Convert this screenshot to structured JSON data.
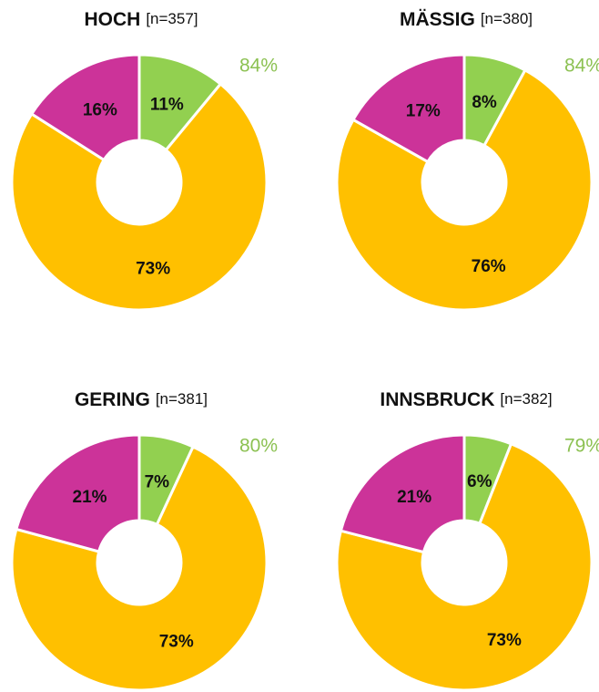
{
  "chart_data": [
    {
      "type": "pie",
      "title": "HOCH",
      "subtitle": "[n=357]",
      "annotation": "84%",
      "categories": [
        null,
        null,
        null
      ],
      "values": [
        11,
        73,
        16
      ],
      "value_labels": [
        "11%",
        "73%",
        "16%"
      ],
      "colors": [
        "#92d050",
        "#ffc000",
        "#cc3399"
      ]
    },
    {
      "type": "pie",
      "title": "MÄSSIG",
      "subtitle": "[n=380]",
      "annotation": "84%",
      "categories": [
        null,
        null,
        null
      ],
      "values": [
        8,
        76,
        17
      ],
      "value_labels": [
        "8%",
        "76%",
        "17%"
      ],
      "colors": [
        "#92d050",
        "#ffc000",
        "#cc3399"
      ]
    },
    {
      "type": "pie",
      "title": "GERING",
      "subtitle": "[n=381]",
      "annotation": "80%",
      "categories": [
        null,
        null,
        null
      ],
      "values": [
        7,
        73,
        21
      ],
      "value_labels": [
        "7%",
        "73%",
        "21%"
      ],
      "colors": [
        "#92d050",
        "#ffc000",
        "#cc3399"
      ]
    },
    {
      "type": "pie",
      "title": "INNSBRUCK",
      "subtitle": "[n=382]",
      "annotation": "79%",
      "categories": [
        null,
        null,
        null
      ],
      "values": [
        6,
        73,
        21
      ],
      "value_labels": [
        "6%",
        "73%",
        "21%"
      ],
      "colors": [
        "#92d050",
        "#ffc000",
        "#cc3399"
      ]
    }
  ]
}
